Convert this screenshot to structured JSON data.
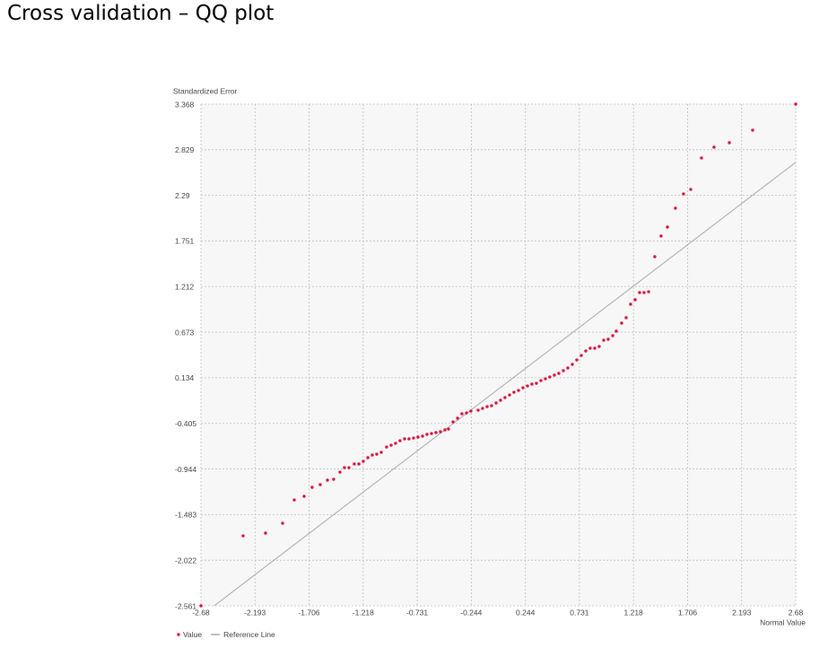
{
  "chart_data": {
    "type": "scatter",
    "title": "Cross validation – QQ plot",
    "y_label": "Standardized Error",
    "x_label": "Normal Value",
    "xlim": [
      -2.68,
      2.68
    ],
    "ylim": [
      -2.561,
      3.368
    ],
    "xticks": [
      -2.68,
      -2.193,
      -1.706,
      -1.218,
      -0.731,
      -0.244,
      0.244,
      0.731,
      1.218,
      1.706,
      2.193,
      2.68
    ],
    "yticks": [
      3.368,
      2.829,
      2.29,
      1.751,
      1.212,
      0.673,
      0.134,
      -0.405,
      -0.944,
      -1.483,
      -2.022,
      -2.561
    ],
    "grid": true,
    "series": [
      {
        "name": "Value",
        "color": "#d6103c",
        "mode": "points",
        "x": [
          -2.68,
          -2.3,
          -2.098,
          -1.944,
          -1.839,
          -1.75,
          -1.678,
          -1.605,
          -1.54,
          -1.484,
          -1.427,
          -1.387,
          -1.346,
          -1.298,
          -1.257,
          -1.217,
          -1.176,
          -1.136,
          -1.096,
          -1.055,
          -1.007,
          -0.966,
          -0.926,
          -0.886,
          -0.845,
          -0.805,
          -0.764,
          -0.724,
          -0.683,
          -0.643,
          -0.602,
          -0.562,
          -0.522,
          -0.481,
          -0.449,
          -0.408,
          -0.368,
          -0.328,
          -0.287,
          -0.247,
          -0.182,
          -0.142,
          -0.101,
          -0.061,
          -0.02,
          0.02,
          0.06,
          0.101,
          0.141,
          0.182,
          0.222,
          0.263,
          0.303,
          0.343,
          0.384,
          0.424,
          0.464,
          0.505,
          0.545,
          0.586,
          0.626,
          0.667,
          0.707,
          0.748,
          0.788,
          0.828,
          0.869,
          0.909,
          0.95,
          0.99,
          1.031,
          1.063,
          1.111,
          1.152,
          1.192,
          1.233,
          1.273,
          1.313,
          1.354,
          1.41,
          1.467,
          1.524,
          1.596,
          1.669,
          1.734,
          1.831,
          1.944,
          2.082,
          2.292,
          2.68
        ],
        "values": [
          -2.561,
          -1.734,
          -1.702,
          -1.585,
          -1.31,
          -1.267,
          -1.161,
          -1.129,
          -1.076,
          -1.066,
          -0.981,
          -0.928,
          -0.928,
          -0.885,
          -0.885,
          -0.853,
          -0.811,
          -0.779,
          -0.769,
          -0.747,
          -0.684,
          -0.663,
          -0.641,
          -0.61,
          -0.588,
          -0.588,
          -0.578,
          -0.567,
          -0.556,
          -0.535,
          -0.525,
          -0.514,
          -0.503,
          -0.482,
          -0.472,
          -0.387,
          -0.344,
          -0.291,
          -0.281,
          -0.26,
          -0.249,
          -0.228,
          -0.207,
          -0.196,
          -0.164,
          -0.132,
          -0.1,
          -0.069,
          -0.037,
          -0.016,
          0.016,
          0.037,
          0.059,
          0.069,
          0.101,
          0.122,
          0.143,
          0.165,
          0.186,
          0.218,
          0.25,
          0.292,
          0.345,
          0.398,
          0.451,
          0.483,
          0.483,
          0.504,
          0.578,
          0.589,
          0.632,
          0.685,
          0.78,
          0.844,
          1.003,
          1.056,
          1.141,
          1.141,
          1.151,
          1.565,
          1.809,
          1.915,
          2.138,
          2.307,
          2.36,
          2.732,
          2.859,
          2.912,
          3.06,
          3.368
        ]
      },
      {
        "name": "Reference Line",
        "color": "#a8a8a8",
        "mode": "line",
        "x": [
          -2.561,
          2.68
        ],
        "values": [
          -2.561,
          2.68
        ]
      }
    ]
  }
}
